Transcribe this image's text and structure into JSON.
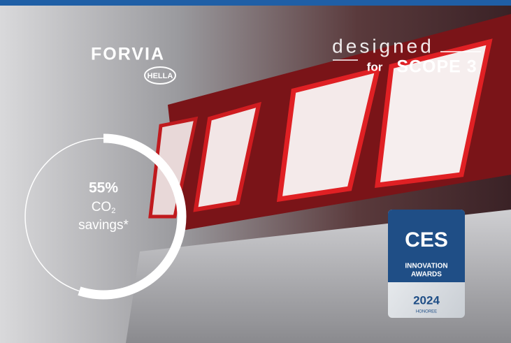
{
  "brand": {
    "name": "FORVIA",
    "sub": "HELLA"
  },
  "tagline": {
    "line1": "designed",
    "for": "for",
    "scope": "SCOPE 3"
  },
  "savings": {
    "value": 55,
    "value_label": "55%",
    "gas": "CO",
    "subscript": "2",
    "label": "savings*"
  },
  "award": {
    "name": "CES",
    "line1": "INNOVATION",
    "line2": "AWARDS",
    "year": "2024",
    "status": "HONOREE"
  }
}
